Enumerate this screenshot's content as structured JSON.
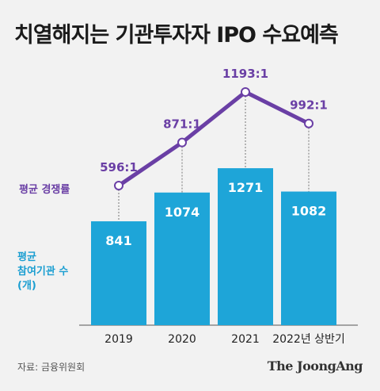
{
  "title": "치열해지는 기관투자자 IPO 수요예측",
  "labels": {
    "rate": "평균 경쟁률",
    "count_line1": "평균",
    "count_line2": "참여기관 수",
    "count_line3": "(개)"
  },
  "source": "자료: 금융위원회",
  "brand": "The JoongAng",
  "colors": {
    "bar": "#1ea5d8",
    "line": "#6a3fa5",
    "background": "#f2f2f2"
  },
  "chart_data": {
    "type": "bar",
    "categories": [
      "2019",
      "2020",
      "2021",
      "2022년 상반기"
    ],
    "series": [
      {
        "values": [
          841,
          1074,
          1271,
          1082
        ],
        "type": "bar"
      },
      {
        "values": [
          596,
          871,
          1193,
          992
        ],
        "type": "line",
        "value_labels": [
          "596:1",
          "871:1",
          "1193:1",
          "992:1"
        ]
      }
    ],
    "grid": false,
    "legend": "none"
  }
}
